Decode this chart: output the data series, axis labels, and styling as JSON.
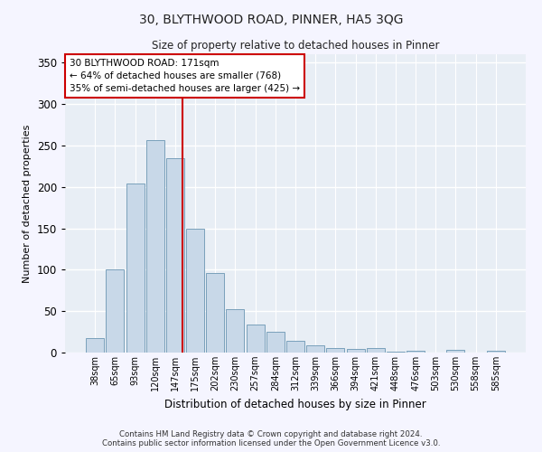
{
  "title": "30, BLYTHWOOD ROAD, PINNER, HA5 3QG",
  "subtitle": "Size of property relative to detached houses in Pinner",
  "xlabel": "Distribution of detached houses by size in Pinner",
  "ylabel": "Number of detached properties",
  "bar_color": "#c8d8e8",
  "bar_edge_color": "#7aa0bb",
  "background_color": "#e8eef5",
  "grid_color": "#ffffff",
  "vline_color": "#cc0000",
  "annotation_text": "30 BLYTHWOOD ROAD: 171sqm\n← 64% of detached houses are smaller (768)\n35% of semi-detached houses are larger (425) →",
  "annotation_box_color": "#ffffff",
  "annotation_box_edge": "#cc0000",
  "categories": [
    "38sqm",
    "65sqm",
    "93sqm",
    "120sqm",
    "147sqm",
    "175sqm",
    "202sqm",
    "230sqm",
    "257sqm",
    "284sqm",
    "312sqm",
    "339sqm",
    "366sqm",
    "394sqm",
    "421sqm",
    "448sqm",
    "476sqm",
    "503sqm",
    "530sqm",
    "558sqm",
    "585sqm"
  ],
  "values": [
    18,
    100,
    204,
    256,
    235,
    150,
    96,
    52,
    34,
    25,
    14,
    9,
    5,
    4,
    5,
    1,
    2,
    0,
    3,
    0,
    2
  ],
  "ylim": [
    0,
    360
  ],
  "yticks": [
    0,
    50,
    100,
    150,
    200,
    250,
    300,
    350
  ],
  "footer1": "Contains HM Land Registry data © Crown copyright and database right 2024.",
  "footer2": "Contains public sector information licensed under the Open Government Licence v3.0.",
  "fig_bg": "#f5f5ff"
}
